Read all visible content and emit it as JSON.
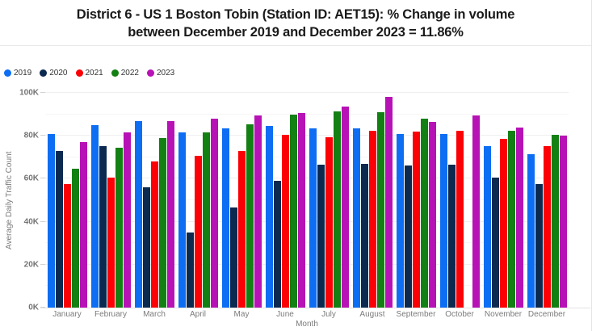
{
  "header": {
    "title_line1": "District 6 - US 1 Boston Tobin (Station ID: AET15): % Change in volume",
    "title_line2": "between December 2019 and December 2023 = 11.86%"
  },
  "chart_data": {
    "type": "bar",
    "title": "District 6 - US 1 Boston Tobin (Station ID: AET15): % Change in volume between December 2019 and December 2023 = 11.86%",
    "xlabel": "Month",
    "ylabel": "Average Daily Traffic Count",
    "value_unit": "thousands (K)",
    "ylim": [
      0,
      100
    ],
    "y_tick_labels": [
      "0K",
      "20K",
      "40K",
      "60K",
      "80K",
      "100K"
    ],
    "grid": true,
    "legend_position": "top-left",
    "categories": [
      "January",
      "February",
      "March",
      "April",
      "May",
      "June",
      "July",
      "August",
      "September",
      "October",
      "November",
      "December"
    ],
    "series": [
      {
        "name": "2019",
        "color": "#0d6ef3",
        "values": [
          81,
          85,
          87,
          81.5,
          83.5,
          84.5,
          83.5,
          83.5,
          81,
          81,
          75,
          71.6
        ]
      },
      {
        "name": "2020",
        "color": "#0c2950",
        "values": [
          73,
          75,
          56,
          35,
          46.5,
          59,
          66.5,
          67,
          66,
          66.5,
          60.5,
          57.5
        ]
      },
      {
        "name": "2021",
        "color": "#fb0005",
        "values": [
          57.5,
          60.5,
          68,
          70.5,
          73,
          80.5,
          79.5,
          82.5,
          82,
          82.5,
          78.5,
          75
        ]
      },
      {
        "name": "2022",
        "color": "#138013",
        "values": [
          64.5,
          74.5,
          79,
          81.5,
          85.5,
          90,
          91.5,
          91,
          88,
          null,
          82.5,
          80.3
        ]
      },
      {
        "name": "2023",
        "color": "#b712b5",
        "values": [
          77,
          81.5,
          87,
          88,
          89.5,
          90.5,
          93.5,
          98,
          86.5,
          89.5,
          84,
          80.1
        ]
      }
    ]
  }
}
